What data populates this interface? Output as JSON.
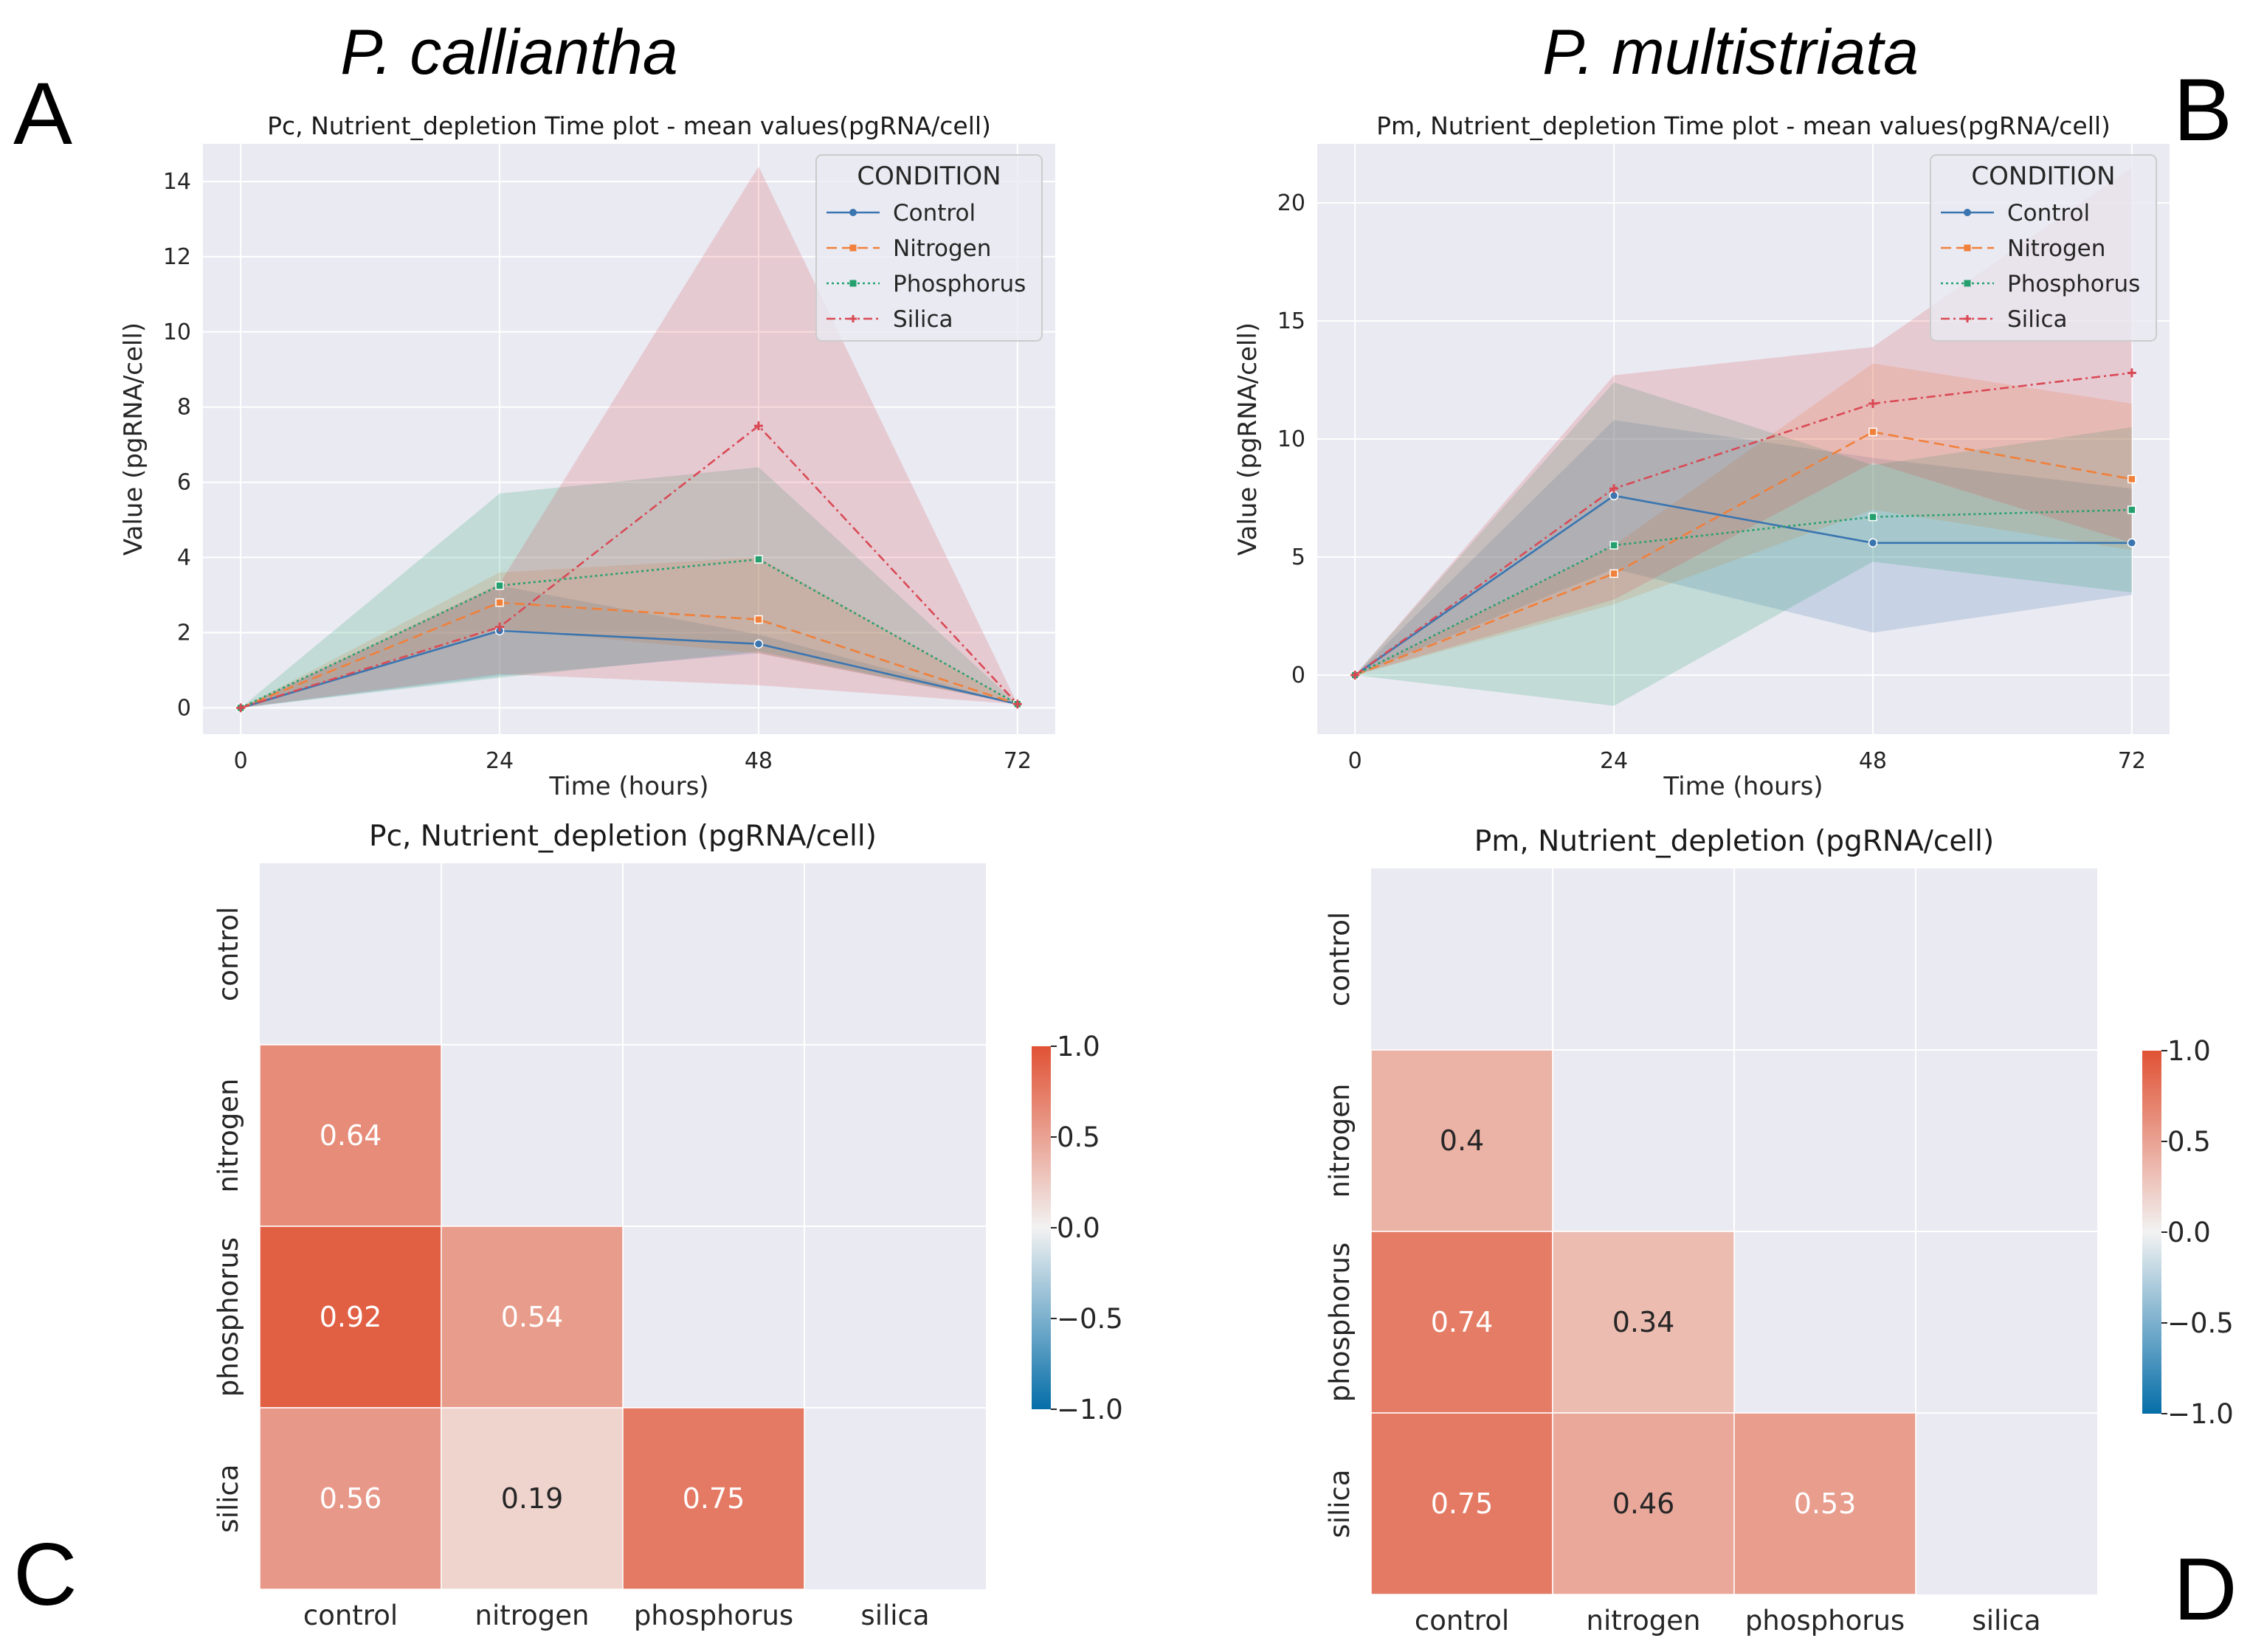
{
  "figure": {
    "species": {
      "A": "P. calliantha",
      "B": "P. multistriata"
    },
    "panels": {
      "A": "A",
      "B": "B",
      "C": "C",
      "D": "D"
    }
  },
  "chart_data": [
    {
      "id": "A",
      "type": "line",
      "title": "Pc, Nutrient_depletion Time plot - mean values(pgRNA/cell)",
      "xlabel": "Time (hours)",
      "ylabel": "Value (pgRNA/cell)",
      "x": [
        0,
        24,
        48,
        72
      ],
      "xticks": [
        "0",
        "24",
        "48",
        "72"
      ],
      "xlim": [
        -3.5,
        75.5
      ],
      "ylim": [
        -0.7,
        15
      ],
      "yticks": [
        0,
        2,
        4,
        6,
        8,
        10,
        12,
        14
      ],
      "grid": true,
      "legend": {
        "title": "CONDITION",
        "position": "top-right"
      },
      "series": [
        {
          "name": "Control",
          "color": "#3a75b0",
          "dash": "",
          "marker": "circle",
          "values": [
            0,
            2.05,
            1.7,
            0.1
          ],
          "lower": [
            0,
            0.85,
            1.45,
            0.1
          ],
          "upper": [
            0,
            3.25,
            1.95,
            0.1
          ]
        },
        {
          "name": "Nitrogen",
          "color": "#f0803a",
          "dash": "14 7",
          "marker": "square",
          "values": [
            0,
            2.8,
            2.35,
            0.1
          ],
          "lower": [
            0,
            2.1,
            1.45,
            0.1
          ],
          "upper": [
            0,
            3.6,
            4.0,
            0.1
          ]
        },
        {
          "name": "Phosphorus",
          "color": "#24a06e",
          "dash": "3 4",
          "marker": "square",
          "values": [
            0,
            3.25,
            3.95,
            0.1
          ],
          "lower": [
            0,
            0.8,
            1.5,
            0.1
          ],
          "upper": [
            0,
            5.7,
            6.4,
            0.1
          ]
        },
        {
          "name": "Silica",
          "color": "#d94a55",
          "dash": "12 5 3 5",
          "marker": "plus",
          "values": [
            0,
            2.15,
            7.5,
            0.1
          ],
          "lower": [
            0,
            0.9,
            0.6,
            0.1
          ],
          "upper": [
            0,
            3.3,
            14.4,
            0.1
          ]
        }
      ]
    },
    {
      "id": "B",
      "type": "line",
      "title": "Pm, Nutrient_depletion Time plot - mean values(pgRNA/cell)",
      "xlabel": "Time (hours)",
      "ylabel": "Value (pgRNA/cell)",
      "x": [
        0,
        24,
        48,
        72
      ],
      "xticks": [
        "0",
        "24",
        "48",
        "72"
      ],
      "xlim": [
        -3.5,
        75.5
      ],
      "ylim": [
        -2.5,
        22.5
      ],
      "yticks": [
        0,
        5,
        10,
        15,
        20
      ],
      "grid": true,
      "legend": {
        "title": "CONDITION",
        "position": "top-right"
      },
      "series": [
        {
          "name": "Control",
          "color": "#3a75b0",
          "dash": "",
          "marker": "circle",
          "values": [
            0,
            7.6,
            5.6,
            5.6
          ],
          "lower": [
            0,
            4.5,
            1.8,
            3.4
          ],
          "upper": [
            0,
            10.8,
            9.2,
            7.9
          ]
        },
        {
          "name": "Nitrogen",
          "color": "#f0803a",
          "dash": "14 7",
          "marker": "square",
          "values": [
            0,
            4.3,
            10.3,
            8.3
          ],
          "lower": [
            0,
            3.0,
            7.0,
            5.3
          ],
          "upper": [
            0,
            5.5,
            13.2,
            11.5
          ]
        },
        {
          "name": "Phosphorus",
          "color": "#24a06e",
          "dash": "3 4",
          "marker": "square",
          "values": [
            0,
            5.5,
            6.7,
            7.0
          ],
          "lower": [
            0,
            -1.3,
            4.8,
            3.5
          ],
          "upper": [
            0,
            12.4,
            8.9,
            10.5
          ]
        },
        {
          "name": "Silica",
          "color": "#d94a55",
          "dash": "12 5 3 5",
          "marker": "plus",
          "values": [
            0,
            7.9,
            11.5,
            12.8
          ],
          "lower": [
            0,
            3.2,
            9.0,
            5.6
          ],
          "upper": [
            0,
            12.7,
            13.9,
            21.5
          ]
        }
      ]
    },
    {
      "id": "C",
      "type": "heatmap",
      "title": "Pc, Nutrient_depletion (pgRNA/cell)",
      "labels": [
        "control",
        "nitrogen",
        "phosphorus",
        "silica"
      ],
      "matrix": [
        [
          null,
          null,
          null,
          null
        ],
        [
          0.64,
          null,
          null,
          null
        ],
        [
          0.92,
          0.54,
          null,
          null
        ],
        [
          0.56,
          0.19,
          0.75,
          null
        ]
      ],
      "vmin": -1.0,
      "vmax": 1.0,
      "colorbar_ticks": [
        "1.0",
        "0.5",
        "0.0",
        "−0.5",
        "−1.0"
      ]
    },
    {
      "id": "D",
      "type": "heatmap",
      "title": "Pm, Nutrient_depletion (pgRNA/cell)",
      "labels": [
        "control",
        "nitrogen",
        "phosphorus",
        "silica"
      ],
      "matrix": [
        [
          null,
          null,
          null,
          null
        ],
        [
          0.4,
          null,
          null,
          null
        ],
        [
          0.74,
          0.34,
          null,
          null
        ],
        [
          0.75,
          0.46,
          0.53,
          null
        ]
      ],
      "vmin": -1.0,
      "vmax": 1.0,
      "colorbar_ticks": [
        "1.0",
        "0.5",
        "0.0",
        "−0.5",
        "−1.0"
      ]
    }
  ]
}
